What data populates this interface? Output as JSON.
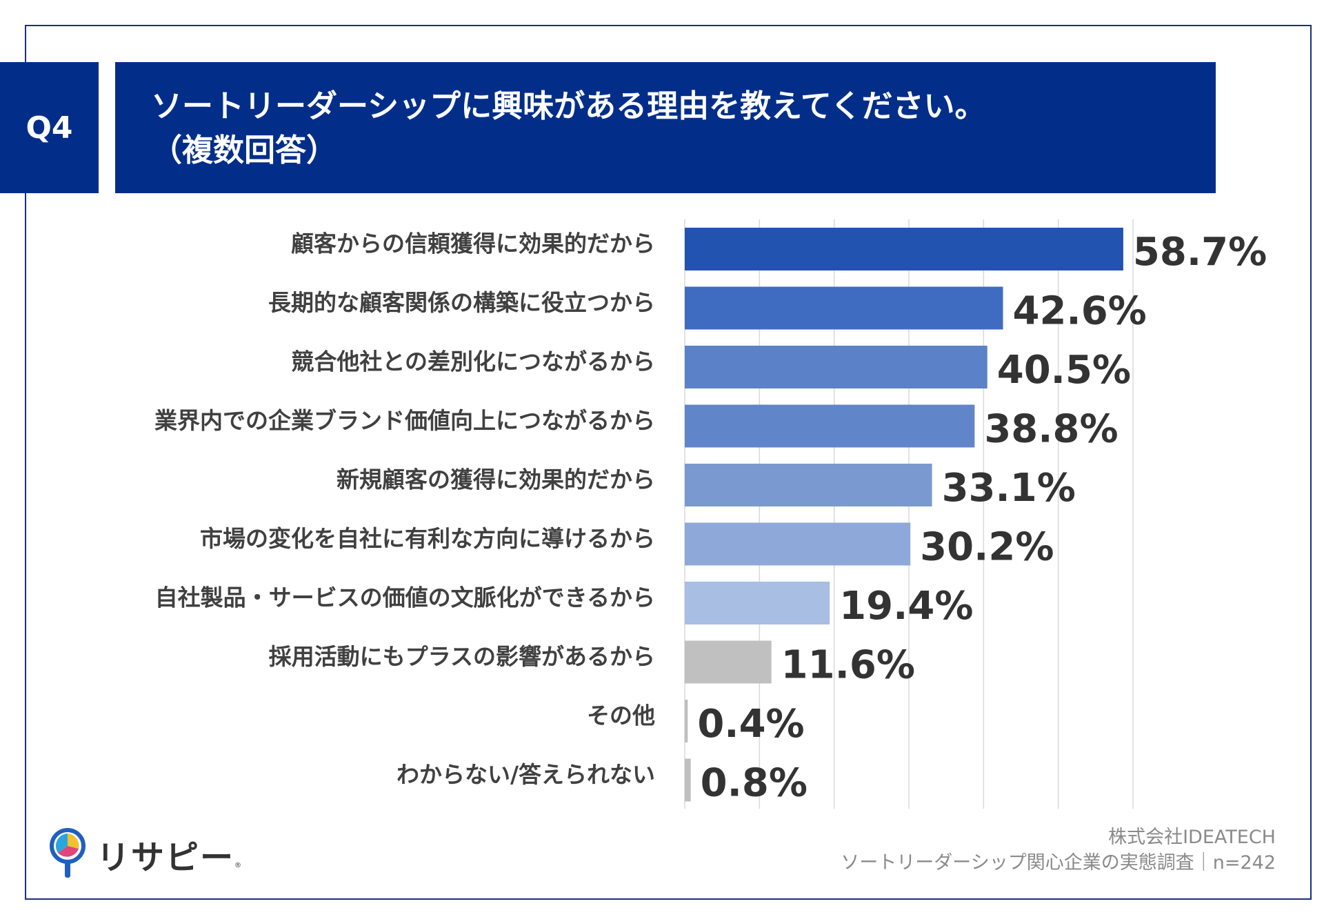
{
  "header": {
    "badge": "Q4",
    "title_line1": "ソートリーダーシップに興味がある理由を教えてください。",
    "title_line2": "（複数回答）"
  },
  "chart_data": {
    "type": "bar",
    "orientation": "horizontal",
    "categories": [
      "顧客からの信頼獲得に効果的だから",
      "長期的な顧客関係の構築に役立つから",
      "競合他社との差別化につながるから",
      "業界内での企業ブランド価値向上につながるから",
      "新規顧客の獲得に効果的だから",
      "市場の変化を自社に有利な方向に導けるから",
      "自社製品・サービスの価値の文脈化ができるから",
      "採用活動にもプラスの影響があるから",
      "その他",
      "わからない/答えられない"
    ],
    "values": [
      58.7,
      42.6,
      40.5,
      38.8,
      33.1,
      30.2,
      19.4,
      11.6,
      0.4,
      0.8
    ],
    "value_labels": [
      "58.7%",
      "42.6%",
      "40.5%",
      "38.8%",
      "33.1%",
      "30.2%",
      "19.4%",
      "11.6%",
      "0.4%",
      "0.8%"
    ],
    "colors": [
      "#2353b0",
      "#3f6cc0",
      "#5b82c8",
      "#6086c9",
      "#7b99d1",
      "#8ea9d9",
      "#a8bee2",
      "#c0c0c0",
      "#bfbfbf",
      "#bfbfbf"
    ],
    "xlim": [
      0,
      60
    ],
    "grid": true,
    "legend": "none"
  },
  "footer": {
    "logo_text": "リサピー",
    "logo_mark": "®",
    "source_line1": "株式会社IDEATECH",
    "source_line2": "ソートリーダーシップ関心企業の実態調査｜n=242"
  },
  "colors": {
    "brand_navy": "#022e8a",
    "frame_border": "#1d2f7a"
  },
  "icons": {
    "logo_icon": "pin-icon"
  }
}
